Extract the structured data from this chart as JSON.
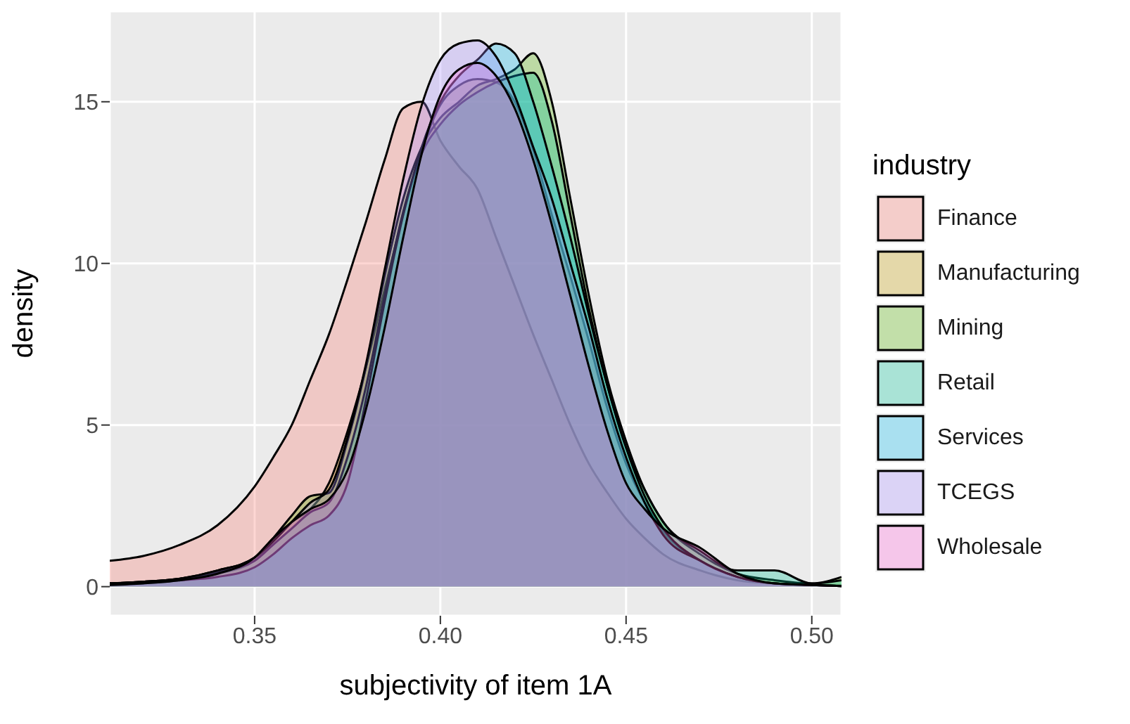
{
  "chart_data": {
    "type": "area",
    "xlabel": "subjectivity of item 1A",
    "ylabel": "density",
    "legend_title": "industry",
    "legend": "right",
    "grid": true,
    "x": [
      0.311,
      0.32,
      0.33,
      0.34,
      0.35,
      0.355,
      0.36,
      0.365,
      0.37,
      0.375,
      0.38,
      0.385,
      0.39,
      0.395,
      0.4,
      0.405,
      0.41,
      0.415,
      0.42,
      0.425,
      0.43,
      0.435,
      0.44,
      0.445,
      0.45,
      0.455,
      0.46,
      0.47,
      0.48,
      0.49,
      0.5,
      0.508
    ],
    "xlim": [
      0.311,
      0.508
    ],
    "xticks": [
      0.35,
      {
        "value": 0.4,
        "label": "0.40"
      },
      0.45,
      {
        "value": 0.5,
        "label": "0.50"
      }
    ],
    "ylim": [
      -0.9,
      17.8
    ],
    "yticks": [
      0,
      5,
      10,
      15
    ],
    "series": [
      {
        "name": "Finance",
        "color": "#f8766d",
        "values": [
          0.8,
          0.95,
          1.3,
          1.9,
          3.1,
          4.0,
          5.0,
          6.4,
          7.8,
          9.5,
          11.3,
          13.2,
          14.8,
          15.0,
          13.8,
          13.0,
          12.3,
          10.8,
          9.3,
          7.8,
          6.4,
          5.0,
          3.8,
          2.9,
          2.1,
          1.5,
          1.0,
          0.5,
          0.2,
          0.1,
          0.05,
          0.03
        ]
      },
      {
        "name": "Manufacturing",
        "color": "#c49a00",
        "values": [
          0.05,
          0.1,
          0.2,
          0.4,
          0.8,
          1.4,
          2.0,
          2.4,
          3.2,
          4.8,
          6.8,
          9.2,
          11.5,
          13.5,
          14.9,
          15.5,
          15.7,
          15.6,
          15.0,
          13.5,
          11.5,
          9.6,
          7.6,
          5.5,
          3.8,
          2.6,
          1.7,
          0.8,
          0.3,
          0.1,
          0.05,
          0.02
        ]
      },
      {
        "name": "Mining",
        "color": "#53b400",
        "values": [
          0.1,
          0.15,
          0.25,
          0.5,
          0.9,
          1.5,
          2.2,
          2.8,
          2.9,
          4.5,
          6.8,
          9.6,
          12.0,
          13.6,
          14.5,
          15.0,
          15.5,
          15.7,
          16.0,
          16.5,
          15.0,
          12.0,
          9.0,
          6.4,
          4.5,
          3.0,
          2.0,
          1.0,
          0.4,
          0.2,
          0.1,
          0.3
        ]
      },
      {
        "name": "Retail",
        "color": "#00c094",
        "values": [
          0.1,
          0.15,
          0.25,
          0.45,
          0.8,
          1.3,
          1.8,
          2.3,
          2.6,
          4.0,
          6.2,
          9.0,
          11.6,
          13.4,
          14.3,
          14.9,
          15.3,
          15.6,
          15.8,
          15.9,
          14.4,
          11.5,
          8.6,
          6.2,
          4.3,
          3.0,
          2.0,
          1.1,
          0.5,
          0.5,
          0.1,
          0.2
        ]
      },
      {
        "name": "Services",
        "color": "#00b6eb",
        "values": [
          0.1,
          0.15,
          0.2,
          0.3,
          0.6,
          1.0,
          1.5,
          1.9,
          2.2,
          3.2,
          5.8,
          8.8,
          11.5,
          13.6,
          15.0,
          15.8,
          16.3,
          16.8,
          16.5,
          15.0,
          13.0,
          10.8,
          8.4,
          6.2,
          4.3,
          2.8,
          1.8,
          0.8,
          0.3,
          0.1,
          0.05,
          0.02
        ]
      },
      {
        "name": "TCEGS",
        "color": "#a58aff",
        "values": [
          0.1,
          0.15,
          0.25,
          0.5,
          0.9,
          1.4,
          2.0,
          2.6,
          3.0,
          4.6,
          6.9,
          9.8,
          12.6,
          14.9,
          16.3,
          16.8,
          16.9,
          16.4,
          15.2,
          13.6,
          12.0,
          10.0,
          8.0,
          5.8,
          4.0,
          2.6,
          1.6,
          0.8,
          0.3,
          0.1,
          0.05,
          0.02
        ]
      },
      {
        "name": "Wholesale",
        "color": "#fb61d7",
        "values": [
          0.05,
          0.1,
          0.2,
          0.4,
          0.9,
          1.5,
          2.0,
          2.4,
          2.7,
          3.6,
          5.5,
          8.0,
          10.8,
          13.4,
          15.2,
          16.0,
          16.2,
          15.8,
          14.8,
          13.2,
          11.2,
          9.0,
          6.8,
          4.8,
          3.2,
          2.4,
          1.8,
          1.2,
          0.4,
          0.1,
          0.05,
          0.02
        ]
      }
    ]
  }
}
